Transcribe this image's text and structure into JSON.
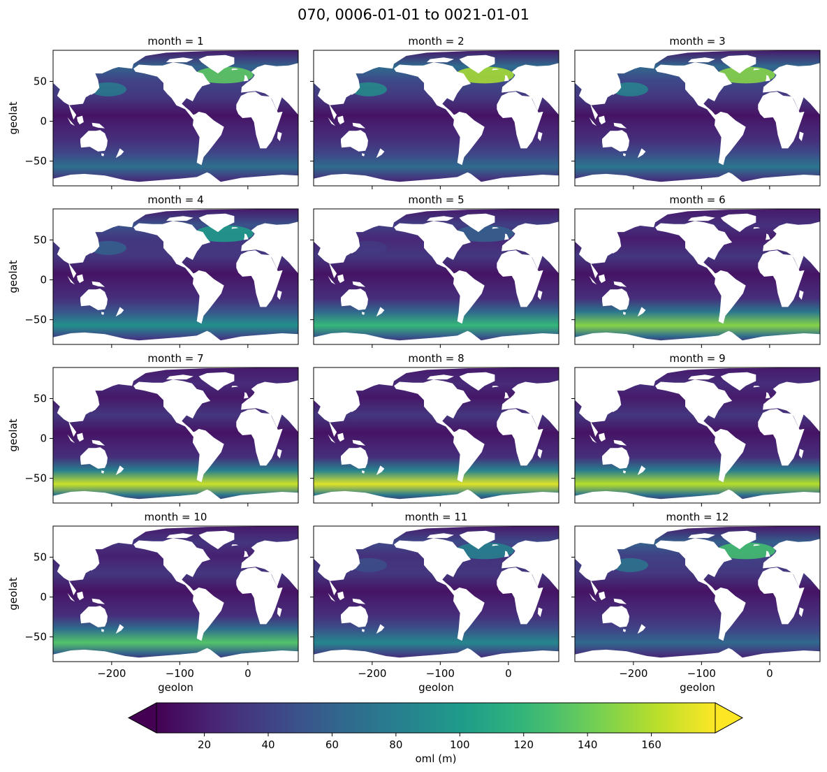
{
  "chart_data": {
    "type": "heatmap",
    "title": "070, 0006-01-01 to 0021-01-01",
    "variable": "oml",
    "colormap": "viridis",
    "colorbar": {
      "label": "oml (m)",
      "ticks": [
        20,
        40,
        60,
        80,
        100,
        120,
        140,
        160
      ],
      "range": [
        5,
        180
      ],
      "extend": "both",
      "orientation": "horizontal",
      "placement": "bottom"
    },
    "xlabel": "geolon",
    "ylabel": "geolat",
    "xlim": [
      -286,
      74
    ],
    "ylim": [
      -81,
      89
    ],
    "xticks": [
      -200,
      -100,
      0
    ],
    "yticks": [
      -50,
      0,
      50
    ],
    "grid": false,
    "layout": {
      "rows": 4,
      "cols": 3
    },
    "panels": [
      {
        "title": "month = 1",
        "month": 1,
        "south_level": 0.22,
        "north_level": 0.62
      },
      {
        "title": "month = 2",
        "month": 2,
        "south_level": 0.2,
        "north_level": 0.72
      },
      {
        "title": "month = 3",
        "month": 3,
        "south_level": 0.26,
        "north_level": 0.68
      },
      {
        "title": "month = 4",
        "month": 4,
        "south_level": 0.4,
        "north_level": 0.45
      },
      {
        "title": "month = 5",
        "month": 5,
        "south_level": 0.62,
        "north_level": 0.25
      },
      {
        "title": "month = 6",
        "month": 6,
        "south_level": 0.82,
        "north_level": 0.12
      },
      {
        "title": "month = 7",
        "month": 7,
        "south_level": 0.96,
        "north_level": 0.06
      },
      {
        "title": "month = 8",
        "month": 8,
        "south_level": 1.0,
        "north_level": 0.05
      },
      {
        "title": "month = 9",
        "month": 9,
        "south_level": 0.92,
        "north_level": 0.08
      },
      {
        "title": "month = 10",
        "month": 10,
        "south_level": 0.7,
        "north_level": 0.16
      },
      {
        "title": "month = 11",
        "month": 11,
        "south_level": 0.35,
        "north_level": 0.36
      },
      {
        "title": "month = 12",
        "month": 12,
        "south_level": 0.18,
        "north_level": 0.58
      }
    ]
  }
}
